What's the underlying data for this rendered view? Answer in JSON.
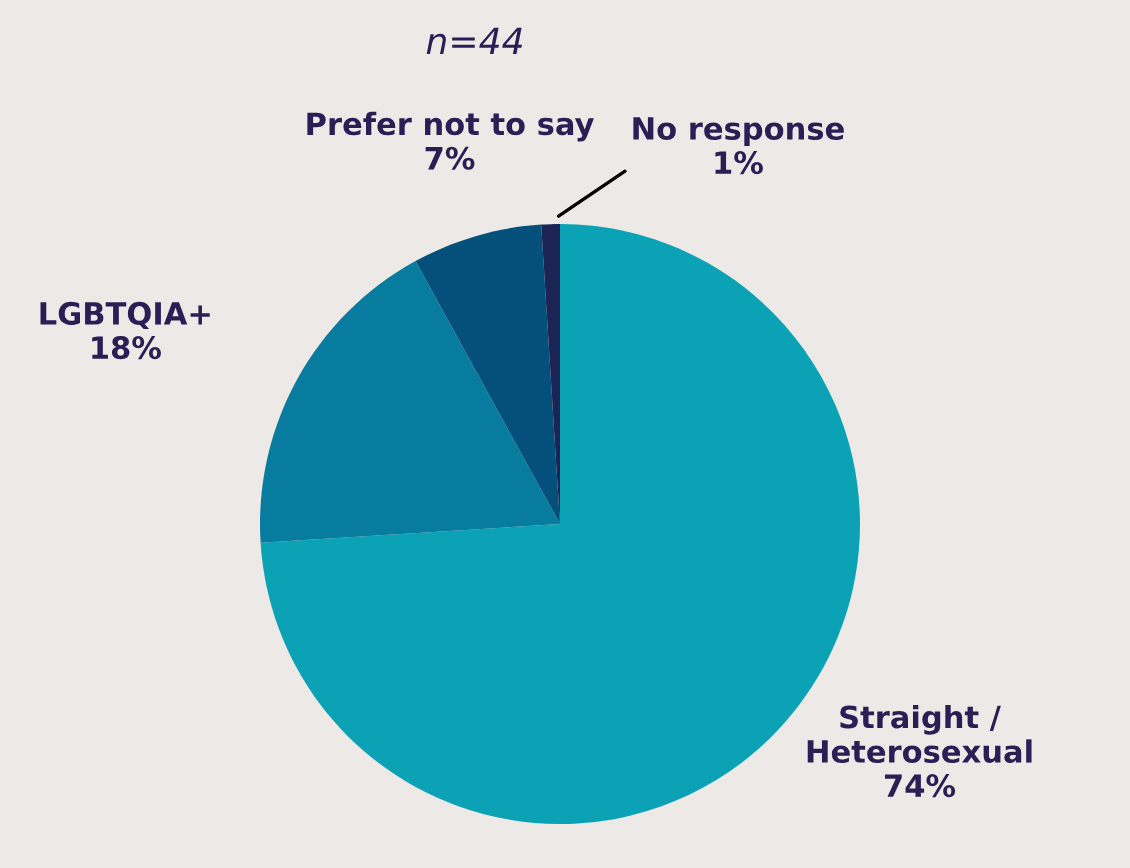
{
  "chart_data": {
    "type": "pie",
    "subtitle": "n=44",
    "categories": [
      "Straight /\nHeterosexual",
      "LGBTQIA+",
      "Prefer not to say",
      "No response"
    ],
    "values": [
      74,
      18,
      7,
      1
    ],
    "value_labels": [
      "74%",
      "18%",
      "7%",
      "1%"
    ],
    "colors": [
      "#0ca2b5",
      "#087c9e",
      "#05507b",
      "#1b2454"
    ],
    "legend": false
  }
}
